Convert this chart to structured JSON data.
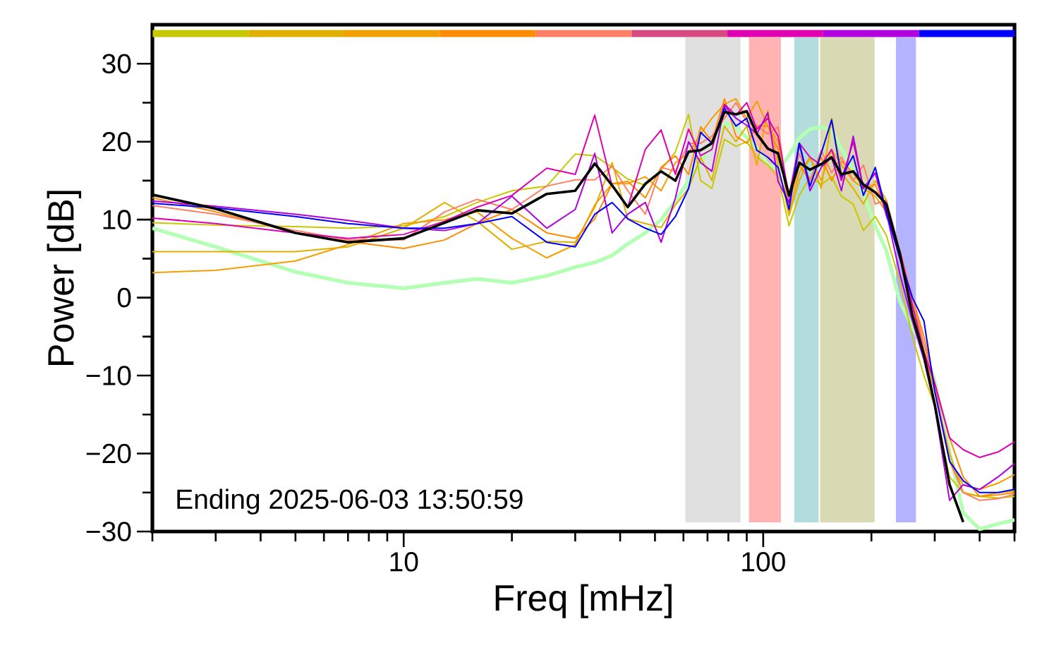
{
  "chart_data": {
    "type": "line",
    "xlabel": "Freq [mHz]",
    "ylabel": "Power [dB]",
    "log": "x",
    "xlim": [
      2,
      500
    ],
    "ylim": [
      -30,
      35
    ],
    "xticks": [
      {
        "value": 2,
        "label": null
      },
      {
        "value": 3,
        "label": null
      },
      {
        "value": 4,
        "label": null
      },
      {
        "value": 5,
        "label": null
      },
      {
        "value": 6,
        "label": null
      },
      {
        "value": 7,
        "label": null
      },
      {
        "value": 8,
        "label": null
      },
      {
        "value": 9,
        "label": null
      },
      10,
      {
        "value": 20,
        "label": null
      },
      {
        "value": 30,
        "label": null
      },
      {
        "value": 40,
        "label": null
      },
      {
        "value": 50,
        "label": null
      },
      {
        "value": 60,
        "label": null
      },
      {
        "value": 70,
        "label": null
      },
      {
        "value": 80,
        "label": null
      },
      {
        "value": 90,
        "label": null
      },
      100,
      {
        "value": 200,
        "label": null
      },
      {
        "value": 300,
        "label": null
      },
      {
        "value": 400,
        "label": null
      },
      {
        "value": 500,
        "label": null
      }
    ],
    "yticks": [
      {
        "value": -30,
        "label": "−30"
      },
      {
        "value": -25,
        "label": null
      },
      {
        "value": -20,
        "label": "−20"
      },
      {
        "value": -15,
        "label": null
      },
      {
        "value": -10,
        "label": "−10"
      },
      {
        "value": -5,
        "label": null
      },
      0,
      {
        "value": 5,
        "label": null
      },
      10,
      {
        "value": 15,
        "label": null
      },
      20,
      {
        "value": 25,
        "label": null
      },
      30
    ],
    "annotations": [
      "Ending 2025-06-03 13:50:59"
    ],
    "bands": [
      {
        "axis": "x",
        "from": 60.7,
        "to": 86.5,
        "color": "#e0e0e0"
      },
      {
        "axis": "x",
        "from": 91.3,
        "to": 112,
        "color": "#ffb3b3"
      },
      {
        "axis": "x",
        "from": 122,
        "to": 142.6,
        "color": "#b3dcdc"
      },
      {
        "axis": "x",
        "from": 144,
        "to": 204,
        "color": "#d9d9b3"
      },
      {
        "axis": "x",
        "from": 234,
        "to": 266,
        "color": "#b3b3ff"
      }
    ],
    "x": [
      2,
      3,
      5,
      7,
      10,
      13,
      16,
      20,
      25,
      30,
      34,
      38,
      42,
      47,
      52,
      57,
      62,
      67,
      72,
      78,
      84,
      90,
      96,
      103,
      110,
      118,
      126,
      135,
      145,
      155,
      165,
      178,
      190,
      205,
      220,
      240,
      260,
      280,
      300,
      330,
      360,
      400,
      450,
      500
    ],
    "series": [
      {
        "color": "#b3ffb3",
        "values": [
          8.9,
          6.5,
          3.3,
          1.9,
          1.2,
          1.9,
          2.4,
          1.9,
          2.8,
          3.9,
          4.5,
          5.4,
          6.9,
          8.3,
          10,
          12.4,
          15,
          17.3,
          19.6,
          22.3,
          21.9,
          20.5,
          19.1,
          17.1,
          16.4,
          18.2,
          20.5,
          21.6,
          21.9,
          21.4,
          19.1,
          16.4,
          13.3,
          9.2,
          6,
          -0.5,
          -3.8,
          -6.5,
          -10.7,
          -19.8,
          -27.6,
          -29.7,
          -29,
          -28.5
        ]
      },
      {
        "color": "#c8c800",
        "values": [
          9.6,
          9.3,
          9.1,
          8.9,
          9.2,
          10.4,
          12.2,
          13.7,
          14.3,
          18.4,
          18.2,
          16.7,
          15.2,
          14.4,
          16.4,
          18.7,
          23.5,
          15,
          14,
          20.3,
          19.4,
          20,
          18,
          17,
          15.5,
          9.2,
          13.1,
          15.5,
          14.5,
          15.5,
          13,
          12,
          8.6,
          10.4,
          8,
          2,
          -5,
          -10,
          -14,
          -23,
          -25,
          -25.5,
          -25.7,
          -25.5
        ]
      },
      {
        "color": "#e0b000",
        "values": [
          5.9,
          5.9,
          5.9,
          6.5,
          8.9,
          12.2,
          9.8,
          6.2,
          7.2,
          7.1,
          11.6,
          17.3,
          10.1,
          9.5,
          9,
          11.9,
          14,
          18,
          15,
          22,
          20,
          22,
          17,
          24,
          17,
          10.5,
          15,
          18,
          14,
          23,
          16,
          14,
          12,
          15,
          12.5,
          5,
          -1,
          -7,
          -12,
          -20,
          -25,
          -25.5,
          -25,
          -24.8
        ]
      },
      {
        "color": "#f5a000",
        "values": [
          3.2,
          3.5,
          4.7,
          6.8,
          9.5,
          10,
          11,
          7.6,
          5.1,
          6.8,
          11.9,
          14.6,
          14.6,
          15.5,
          13.7,
          17.3,
          18.5,
          21,
          23,
          24.8,
          25.5,
          23,
          25.2,
          22,
          20,
          11,
          16,
          18,
          15,
          19,
          17,
          15,
          14,
          13,
          11,
          5,
          0,
          -7,
          -12,
          -21,
          -24,
          -24.6,
          -23.8,
          -22.7
        ]
      },
      {
        "color": "#ff8c00",
        "values": [
          12.8,
          11,
          8.3,
          7.2,
          6.3,
          7.4,
          9.5,
          11.3,
          8.3,
          7.6,
          10.1,
          14.6,
          14.9,
          12.8,
          16.7,
          18.2,
          15.8,
          21.9,
          20,
          25.5,
          20.7,
          19.8,
          22,
          22,
          19,
          12,
          17,
          15,
          18,
          15,
          17.5,
          16,
          14,
          14.5,
          11,
          6,
          0,
          -5,
          -11,
          -18,
          -23,
          -25.5,
          -25.3,
          -25
        ]
      },
      {
        "color": "#ff7f66",
        "values": [
          11.8,
          10.7,
          8.6,
          7.4,
          7.4,
          11,
          12.6,
          11.3,
          14.3,
          15.1,
          15.1,
          16.9,
          13.7,
          10.7,
          16.7,
          16.2,
          19.8,
          19.8,
          20.7,
          23,
          25,
          22.5,
          22,
          21,
          21.9,
          11.9,
          18.5,
          15,
          18.9,
          16,
          18,
          15,
          17,
          12,
          12.5,
          6,
          0,
          -6,
          -11,
          -21,
          -25,
          -26,
          -25.8,
          -25.2
        ]
      },
      {
        "color": "#e000b0",
        "values": [
          10.2,
          9.5,
          8.3,
          7.6,
          8.1,
          9.8,
          11.6,
          13.1,
          16.6,
          15.8,
          23.4,
          14.3,
          11.6,
          19,
          21.5,
          15.8,
          21.6,
          18.2,
          19,
          24.8,
          23.4,
          25,
          21.6,
          23,
          20.7,
          13,
          19.8,
          18,
          17,
          19,
          15,
          20,
          14,
          16,
          10.5,
          6,
          -1,
          -7,
          -11,
          -18,
          -19.5,
          -20.5,
          -19.8,
          -18.5
        ]
      },
      {
        "color": "#b000e0",
        "values": [
          12.4,
          11.7,
          10.7,
          9.9,
          8.9,
          8.6,
          9.5,
          13,
          8.9,
          11.3,
          18.5,
          8.3,
          10.7,
          12.2,
          7.1,
          12.8,
          20,
          17.3,
          16.2,
          24.6,
          23,
          22.1,
          21,
          23.7,
          14.9,
          12.2,
          19.8,
          13.7,
          16.7,
          18,
          13.7,
          20.7,
          14,
          16,
          11,
          3,
          -3,
          -8,
          -14,
          -26,
          -24,
          -24.6,
          -23,
          -21.3
        ]
      },
      {
        "color": "#0000ff",
        "values": [
          12.1,
          11.5,
          10.4,
          9.5,
          8.9,
          8.9,
          9.5,
          10.4,
          7.1,
          6.5,
          10.7,
          12.2,
          10.1,
          8.9,
          8.1,
          10.4,
          14,
          21.2,
          19.8,
          24.3,
          22,
          23,
          18.9,
          18,
          16.7,
          11.3,
          19.8,
          14.3,
          18.5,
          22.8,
          15.5,
          18.2,
          13.1,
          16.7,
          11,
          5,
          0,
          -3,
          -12,
          -21,
          -23.5,
          -25,
          -25,
          -24.6
        ]
      },
      {
        "color": "#000000",
        "values": [
          13.2,
          11.4,
          8.3,
          7.1,
          7.6,
          9.6,
          11.2,
          10.8,
          13.3,
          13.7,
          17.2,
          14.4,
          11.6,
          14.6,
          16.2,
          15,
          18.7,
          18.9,
          19.8,
          23.8,
          23.5,
          23.9,
          21,
          19.1,
          18.5,
          13.1,
          17.3,
          16.4,
          17.1,
          18,
          15.8,
          16.2,
          14.5,
          13.5,
          12,
          5.6,
          -2.3,
          -7.4,
          -13.7,
          -24,
          -28.8,
          null,
          null,
          null
        ]
      }
    ]
  }
}
